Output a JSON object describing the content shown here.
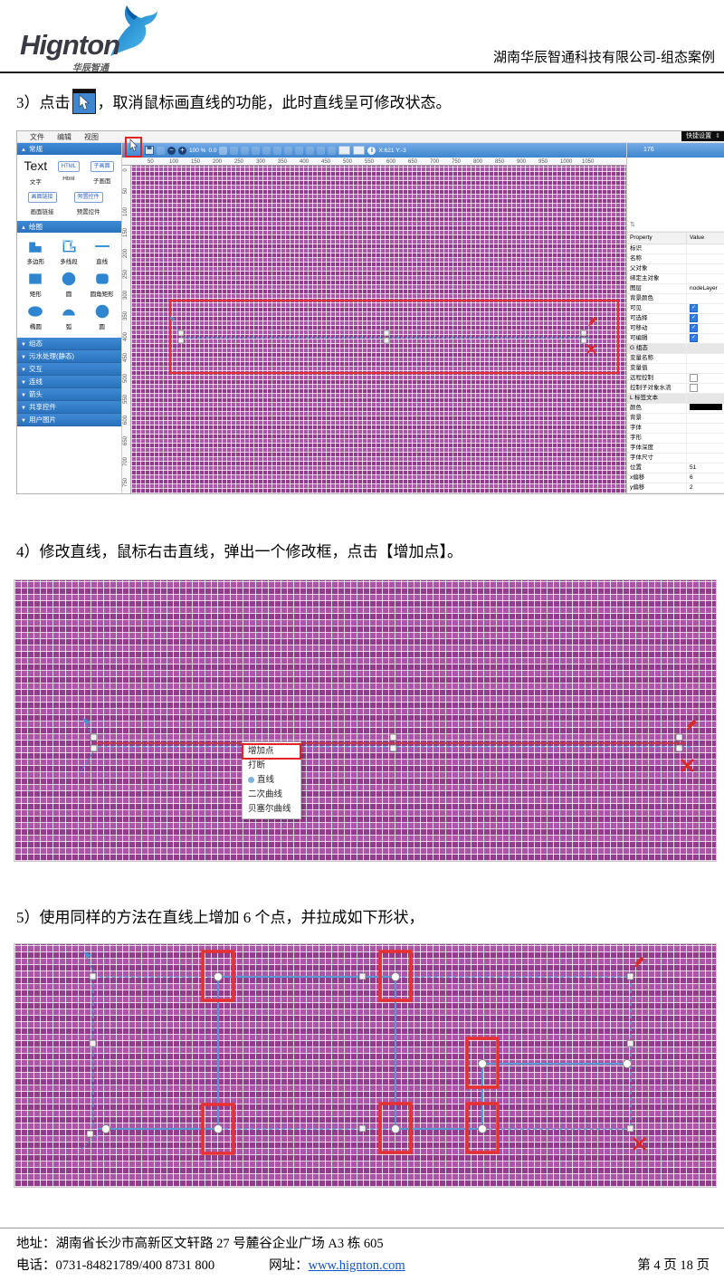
{
  "header": {
    "logo": "Hignton",
    "logo_sub": "华辰智通",
    "title": "湖南华辰智通科技有限公司-组态案例"
  },
  "step3": {
    "prefix": "3）点击",
    "suffix": "，取消鼠标画直线的功能，此时直线呈可修改状态。"
  },
  "step4": "4）修改直线，鼠标右击直线，弹出一个修改框，点击【增加点】。",
  "step5": "5）使用同样的方法在直线上增加 6 个点，并拉成如下形状，",
  "editor": {
    "menu_items": [
      "文件",
      "编辑",
      "视图"
    ],
    "quick_tab": "快捷设置",
    "toolbar": {
      "zoom": "100 %",
      "angle": "0.0",
      "coords": "X:621 Y:-3"
    },
    "layer_badge": "176",
    "left": {
      "sec1_title": "常规",
      "text_display": "Text",
      "text_label": "文字",
      "html_btn": "HTML",
      "html_label": "Html",
      "sub_btn": "子画面",
      "sub_label": "子画面",
      "link_btn": "画面链接",
      "link_label": "画面链接",
      "preset_btn": "预置控件",
      "preset_label": "预置控件",
      "sec2_title": "绘图",
      "shapes": [
        "多边形",
        "多线段",
        "直线",
        "矩形",
        "圆",
        "圆角矩形",
        "椭圆",
        "弧",
        "圆"
      ],
      "closed": [
        "组态",
        "污水处理(静态)",
        "交互",
        "连线",
        "箭头",
        "共享控件",
        "用户图片"
      ]
    },
    "ruler_top": [
      "50",
      "100",
      "150",
      "200",
      "250",
      "300",
      "350",
      "400",
      "450",
      "500",
      "550",
      "600",
      "650",
      "700",
      "750",
      "800",
      "850",
      "900",
      "950",
      "1000",
      "1050"
    ],
    "ruler_left": [
      "0",
      "50",
      "100",
      "150",
      "200",
      "250",
      "300",
      "350",
      "400",
      "450",
      "500",
      "550",
      "600",
      "650",
      "700",
      "750"
    ],
    "props": {
      "header": [
        "Property",
        "Value"
      ],
      "rows": [
        {
          "label": "标识",
          "value": "",
          "type": "text"
        },
        {
          "label": "名称",
          "value": "",
          "type": "text"
        },
        {
          "label": "父对象",
          "value": "",
          "type": "text"
        },
        {
          "label": "绑定主对象",
          "value": "",
          "type": "text"
        },
        {
          "label": "图层",
          "value": "nodeLayer",
          "type": "text"
        },
        {
          "label": "背景颜色",
          "value": "",
          "type": "text"
        },
        {
          "label": "可见",
          "type": "check",
          "checked": true
        },
        {
          "label": "可选择",
          "type": "check",
          "checked": true
        },
        {
          "label": "可移动",
          "type": "check",
          "checked": true
        },
        {
          "label": "可编辑",
          "type": "check",
          "checked": true
        },
        {
          "label": "G 组态",
          "type": "section"
        },
        {
          "label": "变量名称",
          "value": "",
          "type": "text"
        },
        {
          "label": "变量值",
          "value": "",
          "type": "text"
        },
        {
          "label": "远程控制",
          "type": "check",
          "checked": false
        },
        {
          "label": "控制子对象水流",
          "type": "check",
          "checked": false
        },
        {
          "label": "L 标签文本",
          "type": "section"
        },
        {
          "label": "颜色",
          "type": "swatch",
          "value": "#000000"
        },
        {
          "label": "背景",
          "value": "",
          "type": "text"
        },
        {
          "label": "字体",
          "value": "",
          "type": "text"
        },
        {
          "label": "字形",
          "value": "",
          "type": "text"
        },
        {
          "label": "字体深度",
          "value": "",
          "type": "text"
        },
        {
          "label": "字体尺寸",
          "value": "",
          "type": "text"
        },
        {
          "label": "位置",
          "value": "51",
          "type": "text"
        },
        {
          "label": "x偏移",
          "value": "6",
          "type": "text"
        },
        {
          "label": "y偏移",
          "value": "2",
          "type": "text"
        }
      ]
    }
  },
  "context_menu": {
    "items": [
      {
        "label": "增加点",
        "highlighted": true
      },
      {
        "label": "打断"
      },
      {
        "label": "直线",
        "bullet": true
      },
      {
        "label": "二次曲线"
      },
      {
        "label": "贝塞尔曲线"
      }
    ]
  },
  "footer": {
    "address": "地址：湖南省长沙市高新区文轩路 27 号麓谷企业广场 A3 栋 605",
    "phone": "电话：0731-84821789/400 8731 800",
    "web_label": "网址：",
    "web_link": "www.hignton.com",
    "page": "第 4 页 18 页"
  }
}
